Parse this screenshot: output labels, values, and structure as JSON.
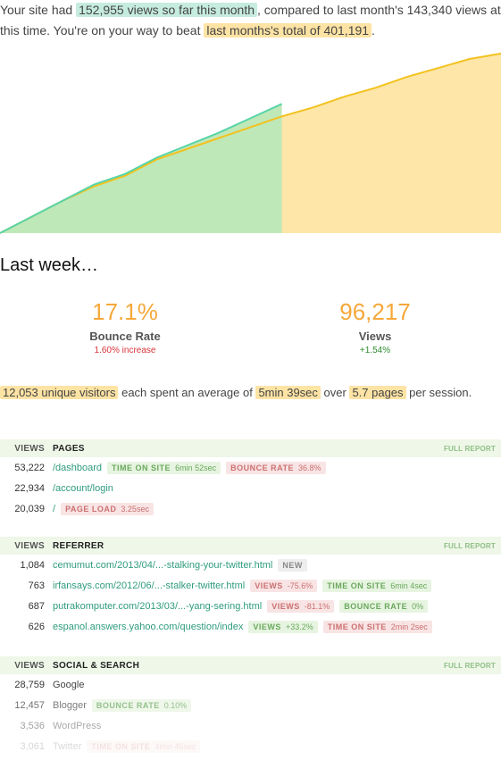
{
  "intro": {
    "p1": "Your site had ",
    "h1": "152,955 views so far this month",
    "p2": ", compared to last month's 143,340 views at this time. You're on your way to beat ",
    "h2": "last months's total of 401,191",
    "p3": "."
  },
  "colors": {
    "current": "#58d4a8",
    "current_fill": "#bfe8b8",
    "previous": "#f3c21f",
    "previous_fill": "#fde6a8"
  },
  "chart_data": {
    "type": "area",
    "title": "",
    "xlabel": "",
    "ylabel": "",
    "series": [
      {
        "values": [
          0,
          0.09,
          0.18,
          0.26,
          0.32,
          0.41,
          0.47,
          0.53,
          0.59,
          0.65,
          0.7,
          0.76,
          0.81,
          0.87,
          0.92,
          0.97,
          1.0
        ]
      },
      {
        "values": [
          0,
          0.09,
          0.18,
          0.27,
          0.33,
          0.42,
          0.49,
          0.56,
          0.64,
          0.72
        ]
      }
    ]
  },
  "last_week": {
    "title": "Last week…",
    "bounce": {
      "value": "17.1%",
      "label": "Bounce Rate",
      "change": "1.60% increase"
    },
    "views": {
      "value": "96,217",
      "label": "Views",
      "change": "+1.54%"
    }
  },
  "summary": {
    "h1": "12,053 unique visitors",
    "p1": " each spent an average of ",
    "h2": "5min 39sec",
    "p2": " over ",
    "h3": "5.7 pages",
    "p3": " per session."
  },
  "pages": {
    "col": "VIEWS",
    "title": "PAGES",
    "full": "FULL REPORT",
    "rows": [
      {
        "num": "53,222",
        "label": "/dashboard",
        "t1l": "TIME ON SITE",
        "t1v": "6min 52sec",
        "t2l": "BOUNCE RATE",
        "t2v": "36.8%"
      },
      {
        "num": "22,934",
        "label": "/account/login"
      },
      {
        "num": "20,039",
        "label": "/",
        "t1l": "PAGE LOAD",
        "t1v": "3.25sec"
      }
    ]
  },
  "referrer": {
    "col": "VIEWS",
    "title": "REFERRER",
    "full": "FULL REPORT",
    "rows": [
      {
        "num": "1,084",
        "label": "cemumut.com/2013/04/...-stalking-your-twitter.html",
        "t1l": "NEW"
      },
      {
        "num": "763",
        "label": "irfansays.com/2012/06/...-stalker-twitter.html",
        "t1l": "VIEWS",
        "t1v": "-75.6%",
        "t2l": "TIME ON SITE",
        "t2v": "6min 4sec"
      },
      {
        "num": "687",
        "label": "putrakomputer.com/2013/03/...-yang-sering.html",
        "t1l": "VIEWS",
        "t1v": "-81.1%",
        "t2l": "BOUNCE RATE",
        "t2v": "0%"
      },
      {
        "num": "626",
        "label": "espanol.answers.yahoo.com/question/index",
        "t1l": "VIEWS",
        "t1v": "+33.2%",
        "t2l": "TIME ON SITE",
        "t2v": "2min 2sec"
      }
    ]
  },
  "social": {
    "col": "VIEWS",
    "title": "SOCIAL & SEARCH",
    "full": "FULL REPORT",
    "rows": [
      {
        "num": "28,759",
        "label": "Google"
      },
      {
        "num": "12,457",
        "label": "Blogger",
        "t1l": "BOUNCE RATE",
        "t1v": "0.10%"
      },
      {
        "num": "3,536",
        "label": "WordPress"
      },
      {
        "num": "3,061",
        "label": "Twitter",
        "t1l": "TIME ON SITE",
        "t1v": "4min 45sec"
      }
    ]
  }
}
